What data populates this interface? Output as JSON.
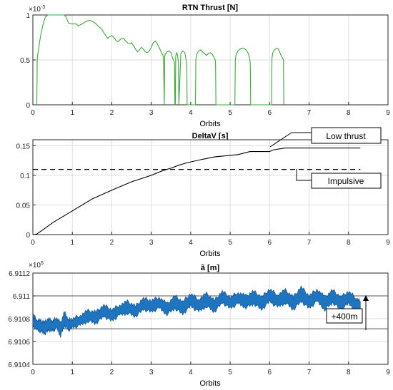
{
  "chart_data": [
    {
      "type": "line",
      "title": "RTN Thrust [N]",
      "xlabel": "Orbits",
      "ylabel": "",
      "xlim": [
        0,
        9
      ],
      "ylim": [
        0,
        0.001
      ],
      "xticks": [
        0,
        1,
        2,
        3,
        4,
        5,
        6,
        7,
        8,
        9
      ],
      "xtick_labels": [
        "0",
        "1",
        "2",
        "3",
        "4",
        "5",
        "6",
        "7",
        "8",
        "9"
      ],
      "yticks": [
        0,
        0.0005,
        0.001
      ],
      "ytick_labels": [
        "0",
        "0.5",
        "1"
      ],
      "y_exponent": "×10",
      "y_exponent_power": "-3",
      "grid": true,
      "color": "#3aa63a",
      "series": [
        {
          "x": [
            0.1,
            0.11,
            0.12,
            0.14,
            0.17,
            0.21,
            0.26,
            0.32,
            0.38,
            0.45,
            0.55,
            0.7,
            0.8,
            0.85,
            0.9,
            1.0,
            1.1,
            1.15,
            1.25,
            1.35,
            1.45,
            1.55,
            1.65,
            1.75,
            1.8,
            1.85,
            1.9,
            1.95,
            2.0,
            2.05,
            2.1,
            2.15,
            2.2,
            2.25,
            2.3,
            2.35,
            2.4,
            2.45,
            2.5,
            2.55,
            2.6,
            2.65,
            2.7,
            2.75,
            2.8,
            2.85,
            2.9,
            2.95,
            3.0,
            3.05,
            3.1,
            3.15,
            3.2,
            3.25,
            3.3,
            3.31,
            3.33,
            3.34,
            3.35,
            3.4,
            3.45,
            3.5,
            3.55,
            3.59,
            3.6,
            3.61,
            3.62,
            3.63,
            3.65,
            3.67,
            3.68,
            3.69,
            3.7,
            3.75,
            3.8,
            3.85,
            3.87,
            3.88,
            3.9,
            3.91,
            4.12,
            4.13,
            4.15,
            4.2,
            4.25,
            4.3,
            4.35,
            4.4,
            4.45,
            4.5,
            4.55,
            4.6,
            4.62,
            4.63,
            4.64,
            4.65,
            5.12,
            5.13,
            5.15,
            5.2,
            5.25,
            5.3,
            5.35,
            5.4,
            5.45,
            5.48,
            5.5,
            5.51,
            5.52,
            6.05,
            6.06,
            6.08,
            6.12,
            6.18,
            6.22,
            6.26,
            6.3,
            6.33,
            6.35,
            6.36
          ],
          "y": [
            0,
            0.0005,
            0.00055,
            0.0006,
            0.0007,
            0.0008,
            0.0009,
            0.00098,
            0.001,
            0.001,
            0.001,
            0.001,
            0.001,
            0.00097,
            0.00091,
            0.0009,
            0.0009,
            0.00088,
            0.0009,
            0.00093,
            0.00094,
            0.00092,
            0.00088,
            0.00084,
            0.0008,
            0.00077,
            0.00074,
            0.00076,
            0.00077,
            0.00075,
            0.00072,
            0.0007,
            0.00072,
            0.00074,
            0.00074,
            0.00071,
            0.00069,
            0.00068,
            0.00069,
            0.00066,
            0.00062,
            0.00059,
            0.00061,
            0.00064,
            0.00062,
            0.00059,
            0.00058,
            0.0006,
            0.00064,
            0.00069,
            0.00071,
            0.00068,
            0.00064,
            0.00059,
            0.00055,
            0.0005,
            0,
            0.00053,
            0.00056,
            0.00059,
            0.0006,
            0.00058,
            0.00051,
            0.00047,
            0,
            0,
            0.00053,
            0.00057,
            0.00058,
            0.00054,
            0.0005,
            0.00045,
            0,
            0.00057,
            0.0006,
            0.00058,
            0.00054,
            0.0005,
            0.00045,
            0,
            0,
            0.0005,
            0.00056,
            0.0006,
            0.00061,
            0.00059,
            0.00057,
            0.00055,
            0.00057,
            0.00058,
            0.00056,
            0.00052,
            0.0005,
            0.00045,
            0,
            0,
            0,
            0.0005,
            0.00056,
            0.0006,
            0.00062,
            0.00063,
            0.00063,
            0.00061,
            0.00058,
            0.00054,
            0.0005,
            0.00045,
            0,
            0,
            0.00052,
            0.00058,
            0.00061,
            0.00063,
            0.00062,
            0.00058,
            0.00054,
            0.00052,
            0.0005,
            0
          ]
        }
      ]
    },
    {
      "type": "line",
      "title": "DeltaV [s]",
      "xlabel": "Orbits",
      "ylabel": "",
      "xlim": [
        0,
        9
      ],
      "ylim": [
        0,
        0.16
      ],
      "xticks": [
        0,
        1,
        2,
        3,
        4,
        5,
        6,
        7,
        8,
        9
      ],
      "xtick_labels": [
        "0",
        "1",
        "2",
        "3",
        "4",
        "5",
        "6",
        "7",
        "8",
        "9"
      ],
      "yticks": [
        0,
        0.05,
        0.1,
        0.15
      ],
      "ytick_labels": [
        "0",
        "0.05",
        "0.1",
        "0.15"
      ],
      "grid": true,
      "series": [
        {
          "name": "Low thrust",
          "style": "solid",
          "color": "#000000",
          "x": [
            0,
            0.1,
            0.25,
            0.5,
            1,
            1.5,
            2,
            2.5,
            3,
            3.3,
            3.5,
            3.7,
            3.9,
            4.3,
            4.6,
            5.2,
            5.5,
            6.0,
            6.1,
            6.4,
            8.3
          ],
          "y": [
            0,
            0.001,
            0.008,
            0.02,
            0.04,
            0.06,
            0.075,
            0.089,
            0.1,
            0.108,
            0.112,
            0.117,
            0.121,
            0.127,
            0.131,
            0.135,
            0.14,
            0.14,
            0.143,
            0.146,
            0.146
          ]
        },
        {
          "name": "Impulsive",
          "style": "dashed",
          "color": "#000000",
          "x": [
            0,
            8.3
          ],
          "y": [
            0.11,
            0.11
          ]
        }
      ],
      "annotations": [
        "Low thrust",
        "Impulsive"
      ]
    },
    {
      "type": "line",
      "title": "ã [m]",
      "xlabel": "Orbits",
      "ylabel": "",
      "xlim": [
        0,
        9
      ],
      "ylim": [
        6910400,
        6911200
      ],
      "xticks": [
        0,
        1,
        2,
        3,
        4,
        5,
        6,
        7,
        8,
        9
      ],
      "xtick_labels": [
        "0",
        "1",
        "2",
        "3",
        "4",
        "5",
        "6",
        "7",
        "8",
        "9"
      ],
      "yticks": [
        6910400,
        6910600,
        6910800,
        6911000,
        6911200
      ],
      "ytick_labels": [
        "6.9104",
        "6.9106",
        "6.9108",
        "6.911",
        "6.9112"
      ],
      "y_exponent": "×10",
      "y_exponent_power": "6",
      "grid": true,
      "band_color": "#1f74bf",
      "reference_lines": [
        6910712,
        6911000
      ],
      "series": [
        {
          "x": [
            0,
            0.1,
            0.2,
            0.3,
            0.4,
            0.5,
            0.6,
            0.7,
            0.8,
            0.9,
            1.0,
            1.2,
            1.4,
            1.6,
            1.8,
            2.0,
            2.2,
            2.4,
            2.6,
            2.8,
            3.0,
            3.2,
            3.4,
            3.6,
            3.8,
            4.0,
            4.2,
            4.4,
            4.6,
            4.8,
            5.0,
            5.2,
            5.4,
            5.6,
            5.8,
            6.0,
            6.2,
            6.4,
            6.6,
            6.8,
            7.0,
            7.2,
            7.4,
            7.6,
            7.8,
            8.0,
            8.2,
            8.3
          ],
          "y_upper": [
            6910840,
            6910790,
            6910780,
            6910770,
            6910800,
            6910780,
            6910810,
            6910760,
            6910860,
            6910790,
            6910800,
            6910830,
            6910870,
            6910860,
            6910920,
            6910880,
            6910920,
            6910950,
            6910910,
            6910980,
            6910960,
            6910990,
            6910930,
            6911000,
            6910950,
            6911020,
            6910970,
            6911020,
            6910960,
            6911040,
            6910990,
            6911030,
            6911000,
            6911040,
            6910990,
            6911060,
            6911010,
            6911050,
            6910990,
            6911080,
            6911000,
            6911060,
            6910990,
            6911050,
            6910990,
            6911040,
            6910980,
            6910950
          ],
          "y_lower": [
            6910740,
            6910700,
            6910690,
            6910670,
            6910700,
            6910690,
            6910720,
            6910650,
            6910740,
            6910700,
            6910720,
            6910740,
            6910780,
            6910760,
            6910820,
            6910780,
            6910830,
            6910850,
            6910820,
            6910880,
            6910860,
            6910890,
            6910840,
            6910890,
            6910840,
            6910910,
            6910860,
            6910910,
            6910860,
            6910940,
            6910890,
            6910930,
            6910900,
            6910930,
            6910880,
            6910950,
            6910900,
            6910940,
            6910880,
            6910950,
            6910890,
            6910950,
            6910880,
            6910940,
            6910880,
            6910930,
            6910870,
            6910850
          ]
        }
      ],
      "annotations": [
        "+400m"
      ]
    }
  ]
}
